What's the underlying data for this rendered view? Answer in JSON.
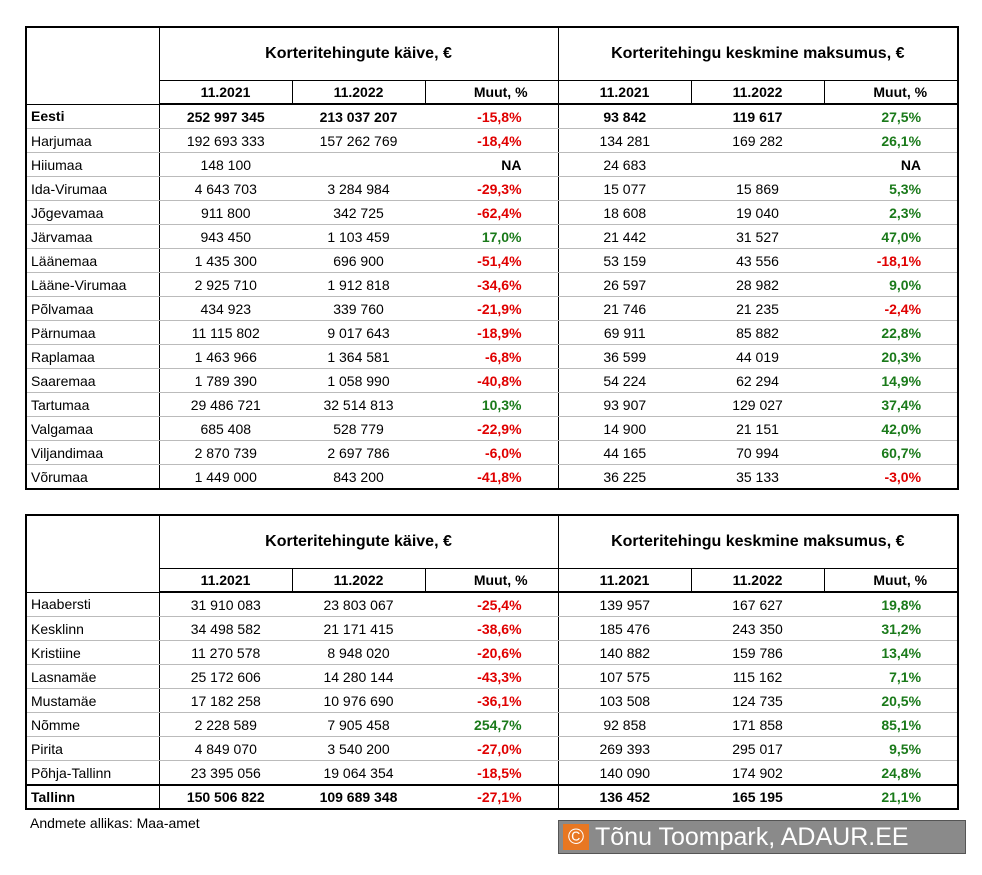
{
  "tables": [
    {
      "groups": [
        "Korteritehingute käive, €",
        "Korteritehingu keskmine maksumus, €"
      ],
      "columns": [
        "11.2021",
        "11.2022",
        "Muut, %",
        "11.2021",
        "11.2022",
        "Muut, %"
      ],
      "rows": [
        [
          "Eesti",
          "252 997 345",
          "213 037 207",
          "-15,8%",
          "93 842",
          "119 617",
          "27,5%"
        ],
        [
          "Harjumaa",
          "192 693 333",
          "157 262 769",
          "-18,4%",
          "134 281",
          "169 282",
          "26,1%"
        ],
        [
          "Hiiumaa",
          "148 100",
          null,
          "NA",
          "24 683",
          null,
          "NA"
        ],
        [
          "Ida-Virumaa",
          "4 643 703",
          "3 284 984",
          "-29,3%",
          "15 077",
          "15 869",
          "5,3%"
        ],
        [
          "Jõgevamaa",
          "911 800",
          "342 725",
          "-62,4%",
          "18 608",
          "19 040",
          "2,3%"
        ],
        [
          "Järvamaa",
          "943 450",
          "1 103 459",
          "17,0%",
          "21 442",
          "31 527",
          "47,0%"
        ],
        [
          "Läänemaa",
          "1 435 300",
          "696 900",
          "-51,4%",
          "53 159",
          "43 556",
          "-18,1%"
        ],
        [
          "Lääne-Virumaa",
          "2 925 710",
          "1 912 818",
          "-34,6%",
          "26 597",
          "28 982",
          "9,0%"
        ],
        [
          "Põlvamaa",
          "434 923",
          "339 760",
          "-21,9%",
          "21 746",
          "21 235",
          "-2,4%"
        ],
        [
          "Pärnumaa",
          "11 115 802",
          "9 017 643",
          "-18,9%",
          "69 911",
          "85 882",
          "22,8%"
        ],
        [
          "Raplamaa",
          "1 463 966",
          "1 364 581",
          "-6,8%",
          "36 599",
          "44 019",
          "20,3%"
        ],
        [
          "Saaremaa",
          "1 789 390",
          "1 058 990",
          "-40,8%",
          "54 224",
          "62 294",
          "14,9%"
        ],
        [
          "Tartumaa",
          "29 486 721",
          "32 514 813",
          "10,3%",
          "93 907",
          "129 027",
          "37,4%"
        ],
        [
          "Valgamaa",
          "685 408",
          "528 779",
          "-22,9%",
          "14 900",
          "21 151",
          "42,0%"
        ],
        [
          "Viljandimaa",
          "2 870 739",
          "2 697 786",
          "-6,0%",
          "44 165",
          "70 994",
          "60,7%"
        ],
        [
          "Võrumaa",
          "1 449 000",
          "843 200",
          "-41,8%",
          "36 225",
          "35 133",
          "-3,0%"
        ]
      ]
    },
    {
      "groups": [
        "Korteritehingute käive, €",
        "Korteritehingu keskmine maksumus, €"
      ],
      "columns": [
        "11.2021",
        "11.2022",
        "Muut, %",
        "11.2021",
        "11.2022",
        "Muut, %"
      ],
      "rows": [
        [
          "Haabersti",
          "31 910 083",
          "23 803 067",
          "-25,4%",
          "139 957",
          "167 627",
          "19,8%"
        ],
        [
          "Kesklinn",
          "34 498 582",
          "21 171 415",
          "-38,6%",
          "185 476",
          "243 350",
          "31,2%"
        ],
        [
          "Kristiine",
          "11 270 578",
          "8 948 020",
          "-20,6%",
          "140 882",
          "159 786",
          "13,4%"
        ],
        [
          "Lasnamäe",
          "25 172 606",
          "14 280 144",
          "-43,3%",
          "107 575",
          "115 162",
          "7,1%"
        ],
        [
          "Mustamäe",
          "17 182 258",
          "10 976 690",
          "-36,1%",
          "103 508",
          "124 735",
          "20,5%"
        ],
        [
          "Nõmme",
          "2 228 589",
          "7 905 458",
          "254,7%",
          "92 858",
          "171 858",
          "85,1%"
        ],
        [
          "Pirita",
          "4 849 070",
          "3 540 200",
          "-27,0%",
          "269 393",
          "295 017",
          "9,5%"
        ],
        [
          "Põhja-Tallinn",
          "23 395 056",
          "19 064 354",
          "-18,5%",
          "140 090",
          "174 902",
          "24,8%"
        ],
        [
          "Tallinn",
          "150 506 822",
          "109 689 348",
          "-27,1%",
          "136 452",
          "165 195",
          "21,1%"
        ]
      ]
    }
  ],
  "footer": {
    "source": "Andmete allikas: Maa-amet",
    "copyright_symbol": "©",
    "copyright_text": "Tõnu Toompark, ADAUR.EE"
  }
}
